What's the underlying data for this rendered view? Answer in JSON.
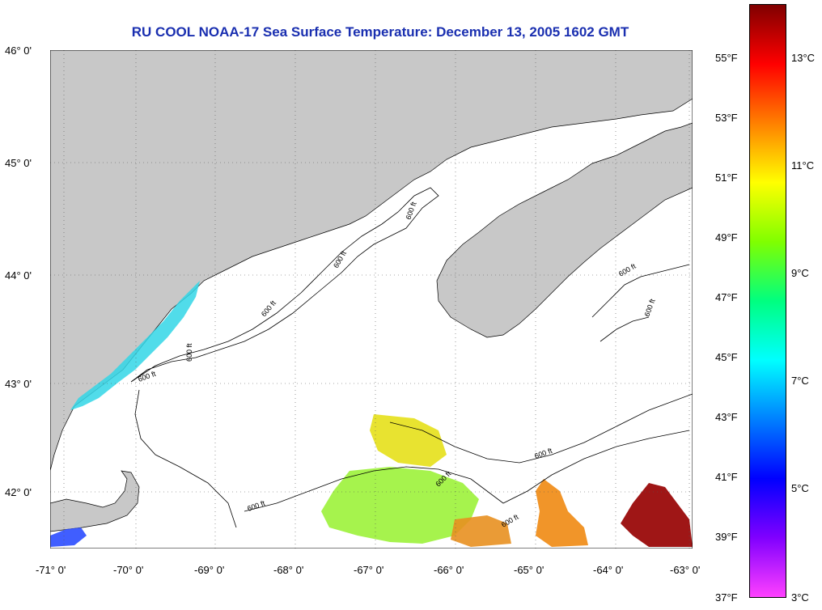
{
  "title": "RU COOL  NOAA-17  Sea Surface Temperature:  December 13, 2005 1602 GMT",
  "lat_labels": [
    "46° 0'",
    "45° 0'",
    "44° 0'",
    "43° 0'",
    "42° 0'"
  ],
  "lon_labels": [
    "-71° 0'",
    "-70° 0'",
    "-69° 0'",
    "-68° 0'",
    "-67° 0'",
    "-66° 0'",
    "-65° 0'",
    "-64° 0'",
    "-63° 0'"
  ],
  "contour_label": "600 ft",
  "fahrenheit_labels": [
    "55°F",
    "53°F",
    "51°F",
    "49°F",
    "47°F",
    "45°F",
    "43°F",
    "41°F",
    "39°F",
    "37°F"
  ],
  "celsius_labels": [
    "13°C",
    "11°C",
    "9°C",
    "7°C",
    "5°C",
    "3°C"
  ],
  "colors": {
    "land": "#c8c8c8",
    "title": "#1a2fb0",
    "ocean": "#ffffff"
  },
  "colorbar_colors": [
    "#800000",
    "#ff0000",
    "#ff8000",
    "#ffff00",
    "#80ff00",
    "#00ff80",
    "#00ffff",
    "#0080ff",
    "#0000ff",
    "#8000ff",
    "#ff40ff"
  ]
}
